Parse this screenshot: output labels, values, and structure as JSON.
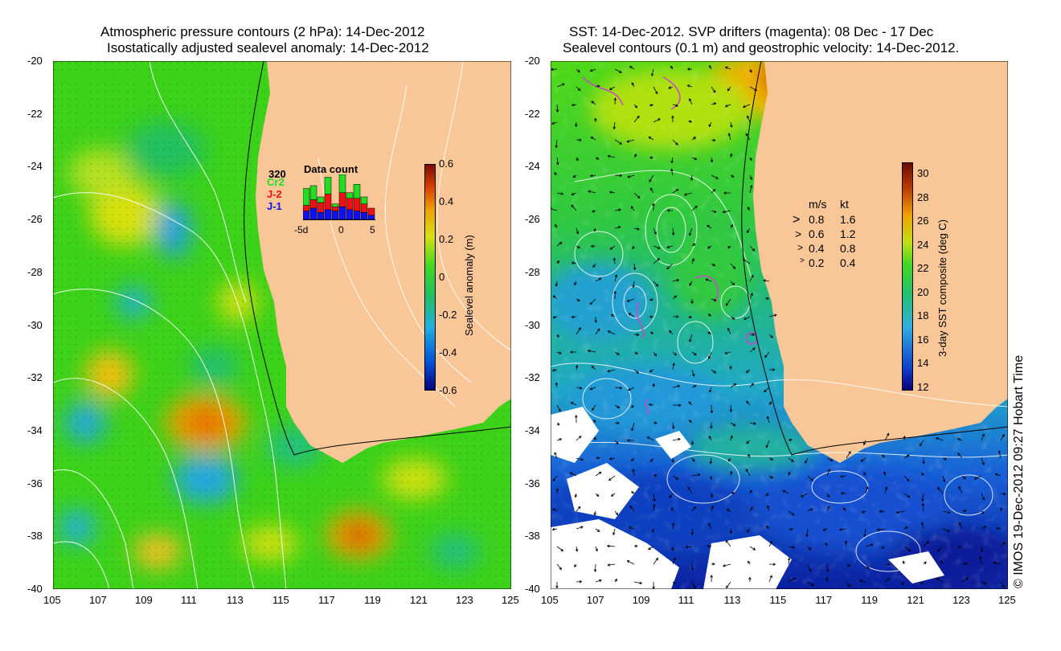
{
  "left_panel": {
    "title_line1": "Atmospheric pressure contours (2 hPa): 14-Dec-2012",
    "title_line2": "Isostatically adjusted sealevel anomaly: 14-Dec-2012",
    "x_ticks": [
      "105",
      "107",
      "109",
      "111",
      "113",
      "115",
      "117",
      "119",
      "121",
      "123",
      "125"
    ],
    "y_ticks": [
      "-20",
      "-22",
      "-24",
      "-26",
      "-28",
      "-30",
      "-32",
      "-34",
      "-36",
      "-38",
      "-40"
    ],
    "colorbar": {
      "label": "Sealevel anomaly (m)",
      "ticks": [
        "0.6",
        "0.4",
        "0.2",
        "0",
        "-0.2",
        "-0.4",
        "-0.6"
      ]
    },
    "data_count": {
      "title": "Data count",
      "max_label": "320",
      "series": [
        {
          "name": "Cr2",
          "color": "#22dd22"
        },
        {
          "name": "J-2",
          "color": "#ee1111"
        },
        {
          "name": "J-1",
          "color": "#1111ee"
        }
      ],
      "x_ticks": [
        "-5d",
        "0",
        "5"
      ],
      "bars": [
        {
          "j1": 60,
          "j2": 40,
          "cr2": 120
        },
        {
          "j1": 80,
          "j2": 60,
          "cr2": 100
        },
        {
          "j1": 50,
          "j2": 70,
          "cr2": 40
        },
        {
          "j1": 70,
          "j2": 110,
          "cr2": 120
        },
        {
          "j1": 60,
          "j2": 30,
          "cr2": 20
        },
        {
          "j1": 90,
          "j2": 100,
          "cr2": 130
        },
        {
          "j1": 70,
          "j2": 80,
          "cr2": 40
        },
        {
          "j1": 60,
          "j2": 90,
          "cr2": 100
        },
        {
          "j1": 50,
          "j2": 60,
          "cr2": 50
        },
        {
          "j1": 30,
          "j2": 50,
          "cr2": 0
        }
      ]
    }
  },
  "right_panel": {
    "title_line1": "SST: 14-Dec-2012. SVP drifters (magenta): 08 Dec - 17 Dec",
    "title_line2": "Sealevel contours (0.1 m) and geostrophic velocity: 14-Dec-2012.",
    "x_ticks": [
      "105",
      "107",
      "109",
      "111",
      "113",
      "115",
      "117",
      "119",
      "121",
      "123",
      "125"
    ],
    "y_ticks": [
      "-20",
      "-22",
      "-24",
      "-26",
      "-28",
      "-30",
      "-32",
      "-34",
      "-36",
      "-38",
      "-40"
    ],
    "colorbar": {
      "label": "3-day SST composite (deg C)",
      "ticks": [
        "30",
        "28",
        "26",
        "24",
        "22",
        "20",
        "18",
        "16",
        "14",
        "12"
      ]
    },
    "velocity_legend": {
      "header_ms": "m/s",
      "header_kt": "kt",
      "rows": [
        {
          "ms": "0.8",
          "kt": "1.6"
        },
        {
          "ms": "0.6",
          "kt": "1.2"
        },
        {
          "ms": "0.4",
          "kt": "0.8"
        },
        {
          "ms": "0.2",
          "kt": "0.4"
        }
      ]
    }
  },
  "copyright": "© IMOS 19-Dec-2012 09:27 Hobart Time",
  "colors": {
    "land": "#f9c797",
    "sla_scale": [
      "#08007a",
      "#0050d8",
      "#20b0e0",
      "#20c060",
      "#33dd11",
      "#d8e010",
      "#f0a000",
      "#d84000",
      "#7a0a00"
    ],
    "sst_scale": [
      "#08007a",
      "#1040d0",
      "#30b0e0",
      "#20c070",
      "#40d820",
      "#c0e010",
      "#f0a000",
      "#c04000",
      "#6a0a00"
    ],
    "drifter": "#cc44cc"
  }
}
